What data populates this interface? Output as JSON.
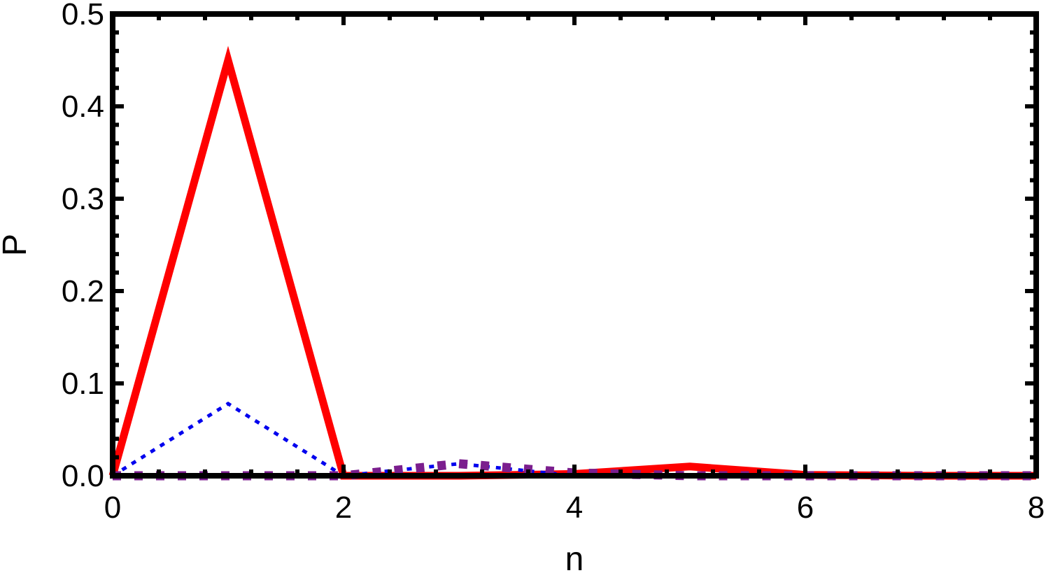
{
  "chart_data": {
    "type": "line",
    "title": "",
    "xlabel": "n",
    "ylabel": "P",
    "xlim": [
      0,
      8
    ],
    "ylim": [
      0,
      0.5
    ],
    "xticks": [
      0,
      2,
      4,
      6,
      8
    ],
    "xtick_labels": [
      "0",
      "2",
      "4",
      "6",
      "8"
    ],
    "yticks": [
      0,
      0.1,
      0.2,
      0.3,
      0.4,
      0.5
    ],
    "ytick_labels": [
      "0.0",
      "0.1",
      "0.2",
      "0.3",
      "0.4",
      "0.5"
    ],
    "grid": false,
    "legend": "none",
    "series": [
      {
        "color": "#ff0000",
        "style": "solid",
        "x": [
          0,
          1,
          2,
          3,
          4,
          5,
          6,
          7,
          8
        ],
        "y": [
          0.0,
          0.45,
          0.0,
          0.0,
          0.002,
          0.01,
          0.001,
          0.0,
          0.0
        ]
      },
      {
        "color": "#0000ee",
        "style": "dotted",
        "x": [
          0,
          1,
          2,
          3,
          4,
          5,
          6,
          7,
          8
        ],
        "y": [
          0.0,
          0.078,
          0.0,
          0.013,
          0.0,
          0.0,
          0.0,
          0.0,
          0.0
        ]
      },
      {
        "color": "#7b1e8e",
        "style": "dashed",
        "x": [
          0,
          1,
          2,
          3,
          4,
          5,
          6,
          7,
          8
        ],
        "y": [
          0.0,
          0.0,
          0.0,
          0.013,
          0.003,
          0.0,
          0.0,
          0.0,
          0.0
        ]
      }
    ]
  }
}
